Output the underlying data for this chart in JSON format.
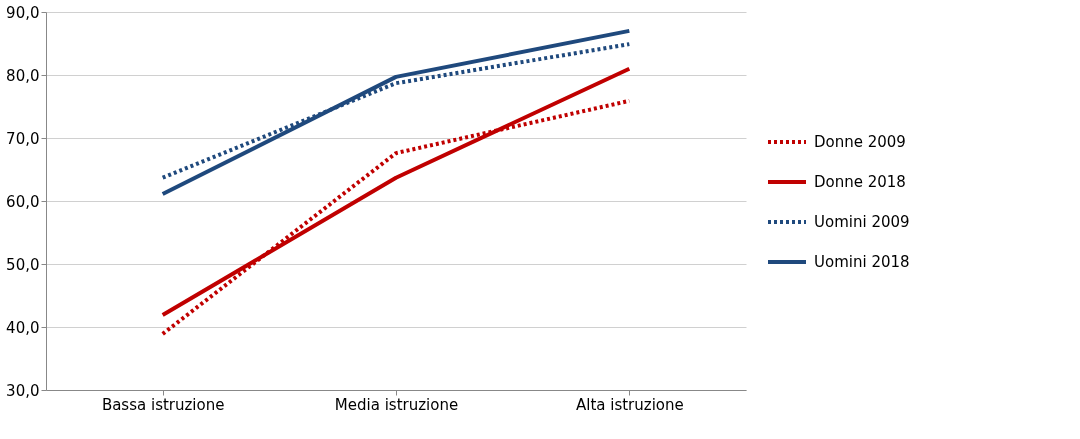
{
  "chart_data": {
    "type": "line",
    "categories": [
      "Bassa istruzione",
      "Media istruzione",
      "Alta istruzione"
    ],
    "series": [
      {
        "name": "Donne 2009",
        "color": "#c00000",
        "line_style": "dotted",
        "values": [
          38.9,
          67.6,
          75.9
        ]
      },
      {
        "name": "Donne 2018",
        "color": "#c00000",
        "line_style": "solid",
        "values": [
          41.9,
          63.7,
          81.0
        ]
      },
      {
        "name": "Uomini 2009",
        "color": "#1f497d",
        "line_style": "dotted",
        "values": [
          63.7,
          78.7,
          84.9
        ]
      },
      {
        "name": "Uomini 2018",
        "color": "#1f497d",
        "line_style": "solid",
        "values": [
          61.1,
          79.7,
          87.0
        ]
      }
    ],
    "ylim": [
      30,
      90
    ],
    "yticks": [
      {
        "value": 30,
        "label": "30,0"
      },
      {
        "value": 40,
        "label": "40,0"
      },
      {
        "value": 50,
        "label": "50,0"
      },
      {
        "value": 60,
        "label": "60,0"
      },
      {
        "value": 70,
        "label": "70,0"
      },
      {
        "value": 80,
        "label": "80,0"
      },
      {
        "value": 90,
        "label": "90,0"
      }
    ],
    "grid": "y",
    "legend": "right",
    "marker": "none"
  }
}
